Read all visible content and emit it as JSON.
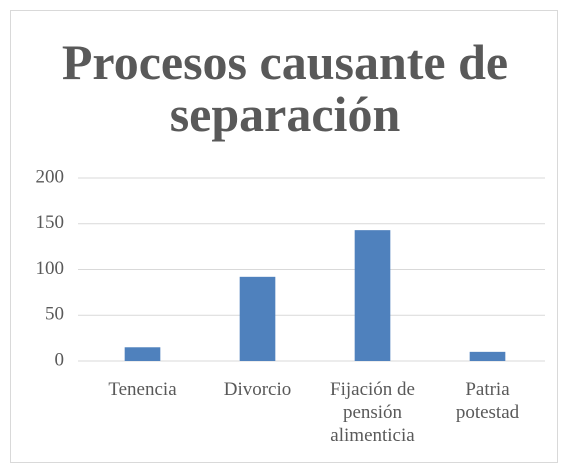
{
  "chart_data": {
    "type": "bar",
    "title": "Procesos causante de separación",
    "categories": [
      "Tenencia",
      "Divorcio",
      "Fijación de pensión alimenticia",
      "Patria potestad"
    ],
    "values": [
      15,
      92,
      143,
      10
    ],
    "color": "#4f81bd",
    "ylim": [
      0,
      200
    ],
    "yticks": [
      0,
      50,
      100,
      150,
      200
    ],
    "grid": true
  }
}
